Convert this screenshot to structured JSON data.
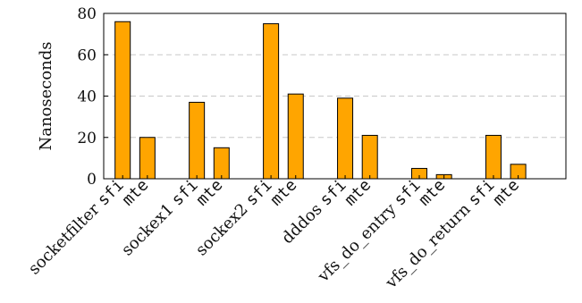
{
  "chart_data": {
    "type": "bar",
    "ylabel": "Nanoseconds",
    "ylim": [
      0,
      80
    ],
    "yticks": [
      0,
      20,
      40,
      60,
      80
    ],
    "grid": true,
    "bar_color": "#FFA500",
    "groups": [
      {
        "name": "socketfilter",
        "bars": [
          {
            "label": "sfi",
            "value": 76
          },
          {
            "label": "mte",
            "value": 20
          }
        ]
      },
      {
        "name": "sockex1",
        "bars": [
          {
            "label": "sfi",
            "value": 37
          },
          {
            "label": "mte",
            "value": 15
          }
        ]
      },
      {
        "name": "sockex2",
        "bars": [
          {
            "label": "sfi",
            "value": 75
          },
          {
            "label": "mte",
            "value": 41
          }
        ]
      },
      {
        "name": "dddos",
        "bars": [
          {
            "label": "sfi",
            "value": 39
          },
          {
            "label": "mte",
            "value": 21
          }
        ]
      },
      {
        "name": "vfs_do_entry",
        "bars": [
          {
            "label": "sfi",
            "value": 5
          },
          {
            "label": "mte",
            "value": 2
          }
        ]
      },
      {
        "name": "vfs_do_return",
        "bars": [
          {
            "label": "sfi",
            "value": 21
          },
          {
            "label": "mte",
            "value": 7
          }
        ]
      }
    ]
  }
}
